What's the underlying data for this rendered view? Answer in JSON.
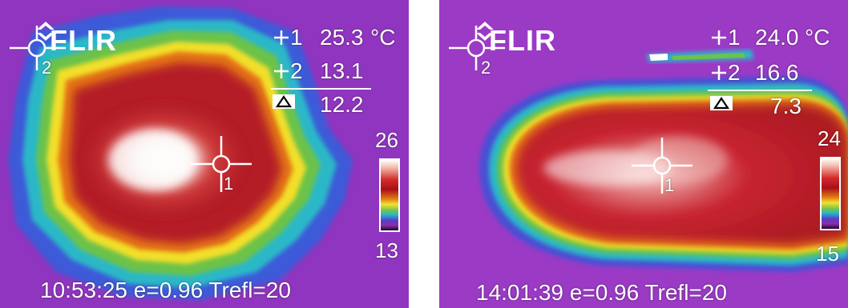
{
  "panels": [
    {
      "logo": "FLIR",
      "spot1": {
        "label": "1",
        "value": "25.3",
        "unit": "°C"
      },
      "spot2": {
        "label": "2",
        "value": "13.1"
      },
      "delta": {
        "value": "12.2"
      },
      "scale": {
        "max": "26",
        "min": "13"
      },
      "crosshair1_label": "1",
      "crosshair2_label": "2",
      "footer": "10:53:25 e=0.96 Trefl=20"
    },
    {
      "logo": "FLIR",
      "spot1": {
        "label": "1",
        "value": "24.0",
        "unit": "°C"
      },
      "spot2": {
        "label": "2",
        "value": "16.6"
      },
      "delta": {
        "value": "7.3"
      },
      "scale": {
        "max": "24",
        "min": "15"
      },
      "crosshair1_label": "1",
      "crosshair2_label": "2",
      "footer": "14:01:39 e=0.96 Trefl=20"
    }
  ],
  "colors": {
    "background_purple": "#a23cc8",
    "hot_white": "#ffffff",
    "warm_red": "#b51a24",
    "yellow": "#f2df2a",
    "green": "#5fc050",
    "cyan": "#30b8d0",
    "blue": "#4a4ad0"
  }
}
